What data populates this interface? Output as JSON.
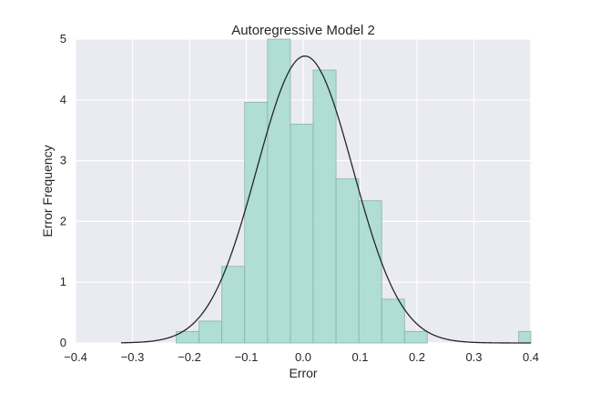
{
  "chart_data": {
    "type": "histogram",
    "title": "Autoregressive Model 2",
    "xlabel": "Error",
    "ylabel": "Error Frequency",
    "xlim": [
      -0.4,
      0.4
    ],
    "ylim": [
      0,
      5
    ],
    "x_ticks": [
      "−0.4",
      "−0.3",
      "−0.2",
      "−0.1",
      "0.0",
      "0.1",
      "0.2",
      "0.3",
      "0.4"
    ],
    "y_ticks": [
      "0",
      "1",
      "2",
      "3",
      "4",
      "5"
    ],
    "grid": true,
    "bins": [
      {
        "x0": -0.2231,
        "x1": -0.183,
        "value": 0.19
      },
      {
        "x0": -0.183,
        "x1": -0.1429,
        "value": 0.36
      },
      {
        "x0": -0.1429,
        "x1": -0.1028,
        "value": 1.26
      },
      {
        "x0": -0.1028,
        "x1": -0.0626,
        "value": 3.96
      },
      {
        "x0": -0.0626,
        "x1": -0.0225,
        "value": 5.0
      },
      {
        "x0": -0.0225,
        "x1": 0.0176,
        "value": 3.6
      },
      {
        "x0": 0.0176,
        "x1": 0.0577,
        "value": 4.49
      },
      {
        "x0": 0.0577,
        "x1": 0.0978,
        "value": 2.7
      },
      {
        "x0": 0.0978,
        "x1": 0.1379,
        "value": 2.34
      },
      {
        "x0": 0.1379,
        "x1": 0.178,
        "value": 0.72
      },
      {
        "x0": 0.178,
        "x1": 0.2181,
        "value": 0.19
      },
      {
        "x0": 0.3786,
        "x1": 0.4187,
        "value": 0.19
      }
    ],
    "fit_curve": {
      "type": "normal",
      "mean": 0.003,
      "std": 0.0845,
      "x_range": [
        -0.32,
        0.4
      ]
    },
    "colors": {
      "plot_background": "#eaeaf2",
      "grid": "#ffffff",
      "bar_fill": "#a6dbcf",
      "bar_edge": "#86b3a8",
      "curve": "#262626"
    }
  }
}
